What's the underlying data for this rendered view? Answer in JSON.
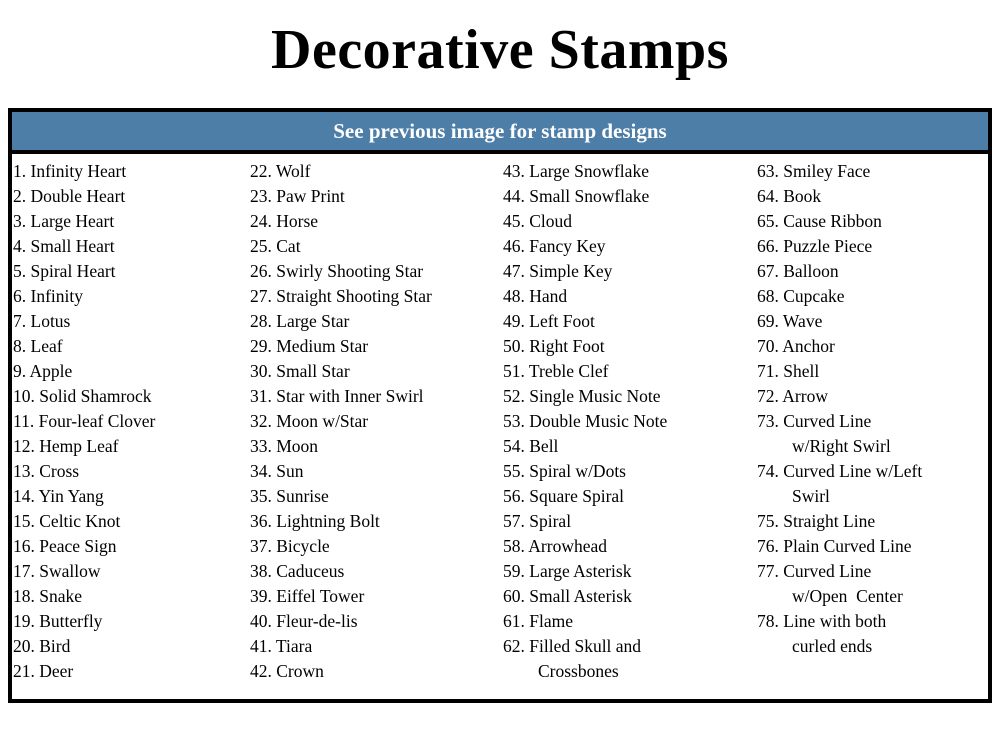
{
  "title": "Decorative Stamps",
  "banner": {
    "text": "See previous image for stamp designs"
  },
  "colors": {
    "background": "#ffffff",
    "banner_bg": "#4d7ea8",
    "banner_text": "#ffffff",
    "border": "#000000",
    "text": "#000000"
  },
  "stamp_list": {
    "columns": [
      [
        [
          "1. Infinity Heart"
        ],
        [
          "2. Double Heart"
        ],
        [
          "3. Large Heart"
        ],
        [
          "4. Small Heart"
        ],
        [
          "5. Spiral Heart"
        ],
        [
          "6. Infinity"
        ],
        [
          "7. Lotus"
        ],
        [
          "8. Leaf"
        ],
        [
          "9. Apple"
        ],
        [
          "10. Solid Shamrock"
        ],
        [
          "11. Four-leaf Clover"
        ],
        [
          "12. Hemp Leaf"
        ],
        [
          "13. Cross"
        ],
        [
          "14. Yin Yang"
        ],
        [
          "15. Celtic Knot"
        ],
        [
          "16. Peace Sign"
        ],
        [
          "17. Swallow"
        ],
        [
          "18. Snake"
        ],
        [
          "19. Butterfly"
        ],
        [
          "20. Bird"
        ],
        [
          "21. Deer"
        ]
      ],
      [
        [
          "22. Wolf"
        ],
        [
          "23. Paw Print"
        ],
        [
          "24. Horse"
        ],
        [
          "25. Cat"
        ],
        [
          "26. Swirly Shooting Star"
        ],
        [
          "27. Straight Shooting Star"
        ],
        [
          "28. Large Star"
        ],
        [
          "29. Medium Star"
        ],
        [
          "30. Small Star"
        ],
        [
          "31. Star with Inner Swirl"
        ],
        [
          "32. Moon w/Star"
        ],
        [
          "33. Moon"
        ],
        [
          "34. Sun"
        ],
        [
          "35. Sunrise"
        ],
        [
          "36. Lightning Bolt"
        ],
        [
          "37. Bicycle"
        ],
        [
          "38. Caduceus"
        ],
        [
          "39. Eiffel Tower"
        ],
        [
          "40. Fleur-de-lis"
        ],
        [
          "41. Tiara"
        ],
        [
          "42. Crown"
        ]
      ],
      [
        [
          "43. Large Snowflake"
        ],
        [
          "44. Small Snowflake"
        ],
        [
          "45. Cloud"
        ],
        [
          "46. Fancy Key"
        ],
        [
          "47. Simple Key"
        ],
        [
          "48. Hand"
        ],
        [
          "49. Left Foot"
        ],
        [
          "50. Right Foot"
        ],
        [
          "51. Treble Clef"
        ],
        [
          "52. Single Music Note"
        ],
        [
          "53. Double Music Note"
        ],
        [
          "54. Bell"
        ],
        [
          "55. Spiral w/Dots"
        ],
        [
          "56. Square Spiral"
        ],
        [
          "57. Spiral"
        ],
        [
          "58. Arrowhead"
        ],
        [
          "59. Large Asterisk"
        ],
        [
          "60. Small Asterisk"
        ],
        [
          "61. Flame"
        ],
        [
          "62. Filled Skull and",
          "Crossbones"
        ]
      ],
      [
        [
          "63. Smiley Face"
        ],
        [
          "64. Book"
        ],
        [
          "65. Cause Ribbon"
        ],
        [
          "66. Puzzle Piece"
        ],
        [
          "67. Balloon"
        ],
        [
          "68. Cupcake"
        ],
        [
          "69. Wave"
        ],
        [
          "70. Anchor"
        ],
        [
          "71. Shell"
        ],
        [
          "72. Arrow"
        ],
        [
          "73. Curved Line",
          "w/Right Swirl"
        ],
        [
          "74. Curved Line w/Left",
          "Swirl"
        ],
        [
          "75. Straight Line"
        ],
        [
          "76. Plain Curved Line"
        ],
        [
          "77. Curved Line",
          "w/Open  Center"
        ],
        [
          "78. Line with both",
          "curled ends"
        ]
      ]
    ]
  }
}
